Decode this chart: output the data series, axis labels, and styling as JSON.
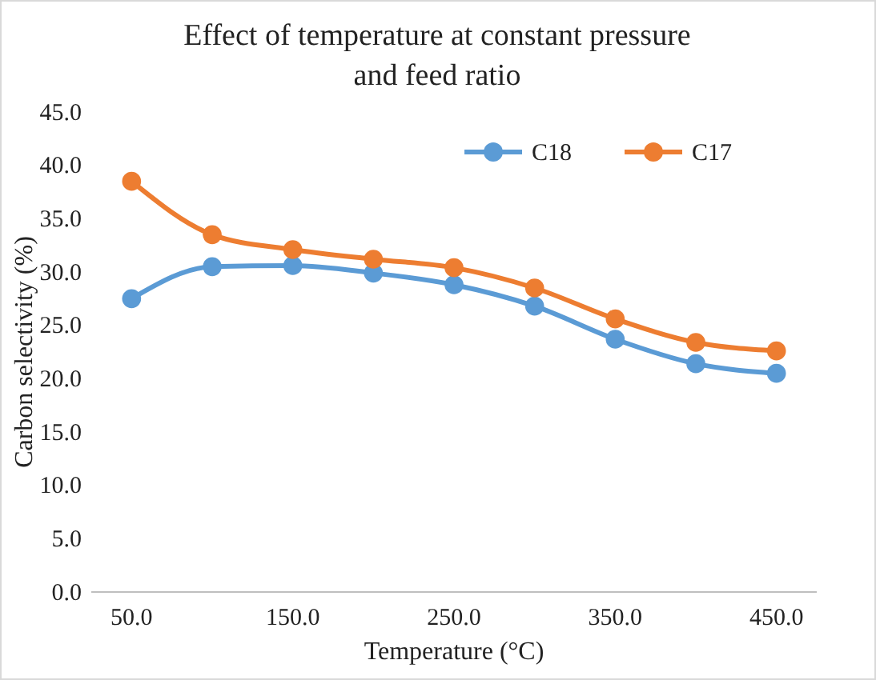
{
  "chart_data": {
    "type": "line",
    "title": "Effect of temperature at constant pressure and feed ratio",
    "xlabel": "Temperature (°C)",
    "ylabel": "Carbon selectivity (%)",
    "x": [
      50,
      100,
      150,
      200,
      250,
      300,
      350,
      400,
      450
    ],
    "xlim": [
      25,
      475
    ],
    "xticks": [
      {
        "value": 50,
        "label": "50.0"
      },
      {
        "value": 150,
        "label": "150.0"
      },
      {
        "value": 250,
        "label": "250.0"
      },
      {
        "value": 350,
        "label": "350.0"
      },
      {
        "value": 450,
        "label": "450.0"
      }
    ],
    "ylim": [
      0,
      45
    ],
    "yticks": [
      {
        "value": 0,
        "label": "0.0"
      },
      {
        "value": 5,
        "label": "5.0"
      },
      {
        "value": 10,
        "label": "10.0"
      },
      {
        "value": 15,
        "label": "15.0"
      },
      {
        "value": 20,
        "label": "20.0"
      },
      {
        "value": 25,
        "label": "25.0"
      },
      {
        "value": 30,
        "label": "30.0"
      },
      {
        "value": 35,
        "label": "35.0"
      },
      {
        "value": 40,
        "label": "40.0"
      },
      {
        "value": 45,
        "label": "45.0"
      }
    ],
    "series": [
      {
        "name": "C18",
        "color": "#5b9bd5",
        "values": [
          27.5,
          30.5,
          30.6,
          29.9,
          28.8,
          26.8,
          23.7,
          21.4,
          20.5
        ]
      },
      {
        "name": "C17",
        "color": "#ed7d31",
        "values": [
          38.5,
          33.5,
          32.1,
          31.2,
          30.4,
          28.5,
          25.6,
          23.4,
          22.6
        ]
      }
    ],
    "legend": "top right",
    "marker": "circle",
    "line_style": "solid",
    "grid": false
  }
}
